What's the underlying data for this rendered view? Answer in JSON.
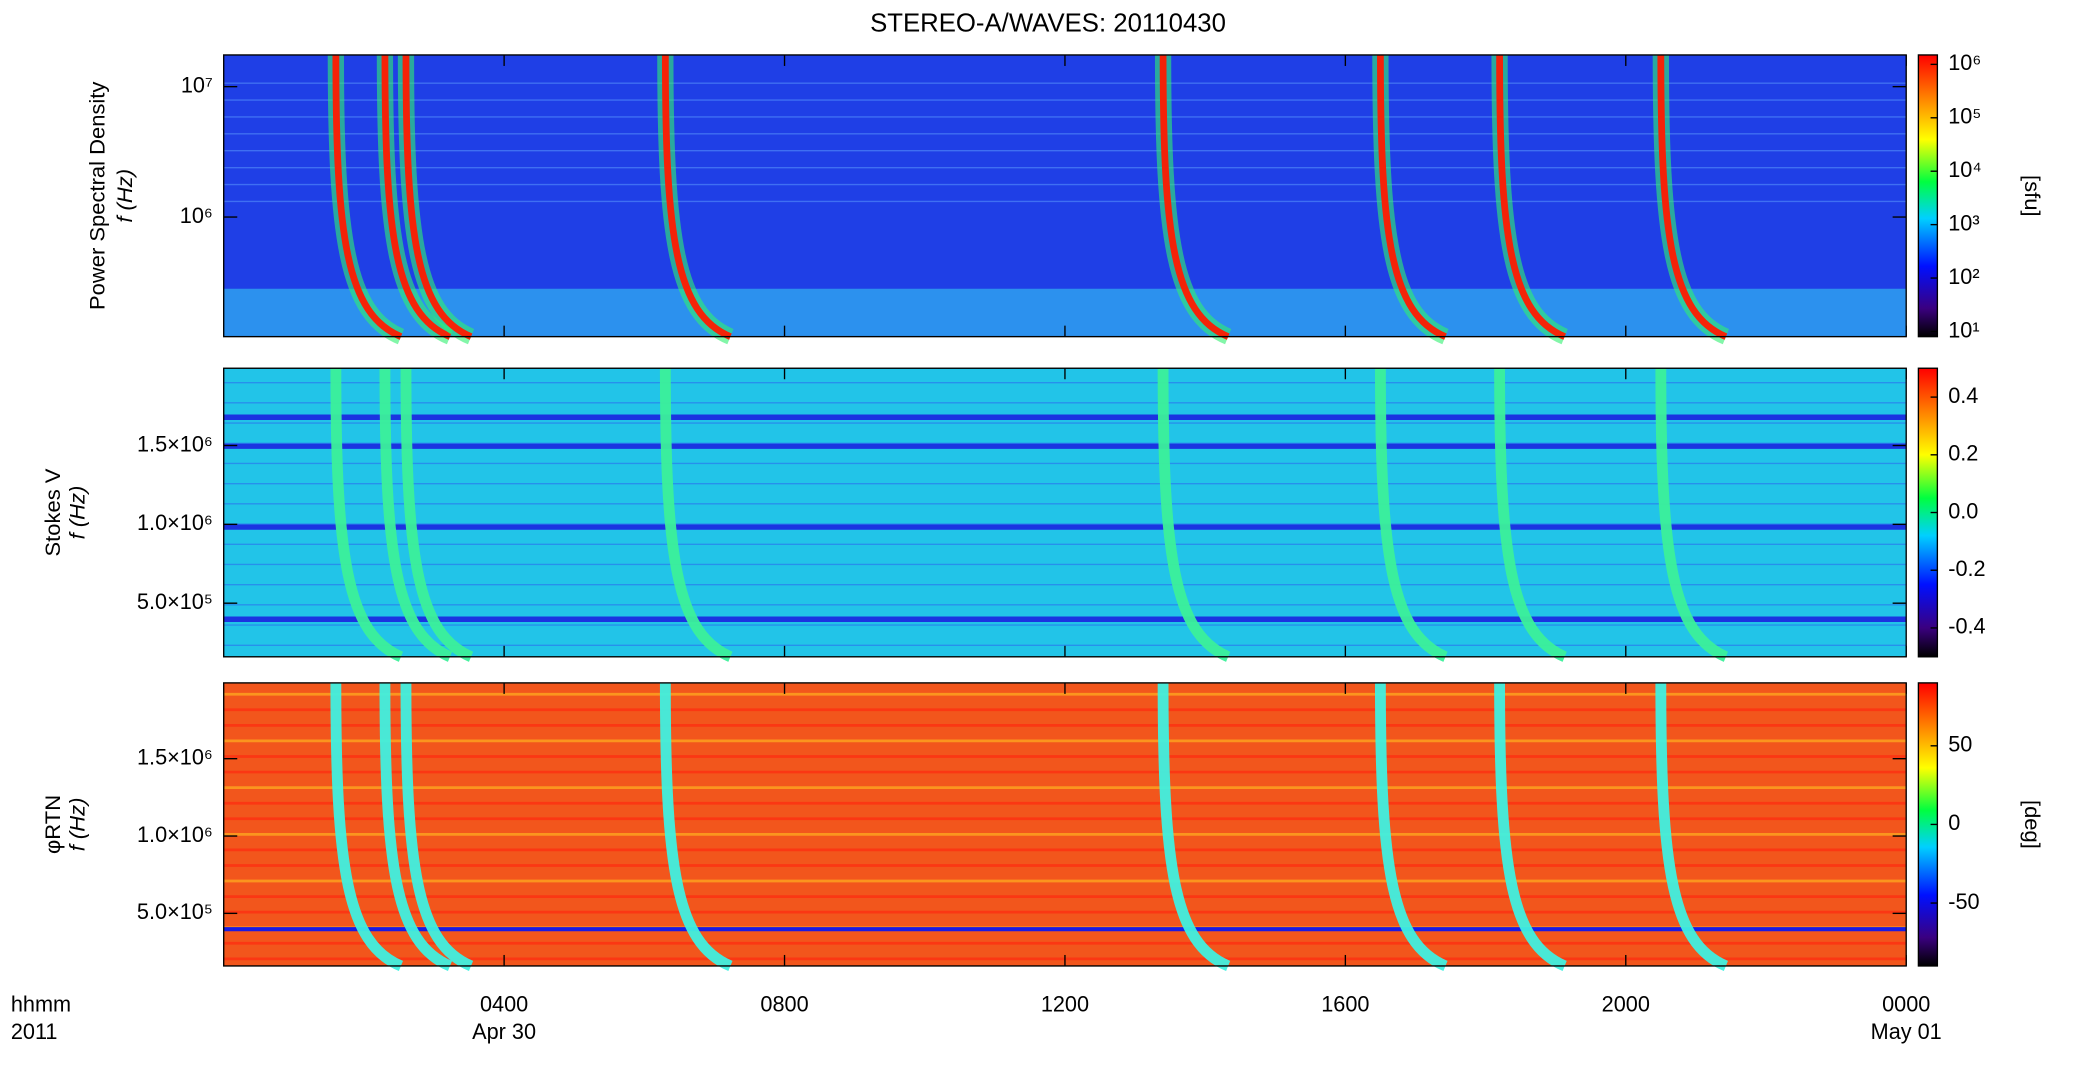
{
  "chart_data": [
    {
      "type": "heatmap",
      "title": "STEREO-A/WAVES: 20110430",
      "ylabel": "Power Spectral Density",
      "ylabel2": "f (Hz)",
      "ylog": true,
      "ylim": [
        121000,
        17500000
      ],
      "yticks": [
        {
          "value": 1000000,
          "label": "10⁶"
        },
        {
          "value": 10000000,
          "label": "10⁷"
        }
      ],
      "colorbar": {
        "log": true,
        "lim": [
          8,
          1500000
        ],
        "label": "[sfu]",
        "ticks": [
          {
            "value": 10,
            "label": "10¹"
          },
          {
            "value": 100,
            "label": "10²"
          },
          {
            "value": 1000,
            "label": "10³"
          },
          {
            "value": 10000,
            "label": "10⁴"
          },
          {
            "value": 100000,
            "label": "10⁵"
          },
          {
            "value": 1000000,
            "label": "10⁶"
          }
        ]
      },
      "background": "#1f3fe6",
      "burst_color": "#ff1a00",
      "bursts": [
        1.6,
        2.3,
        2.6,
        6.3,
        13.4,
        16.5,
        18.2,
        20.5
      ]
    },
    {
      "type": "heatmap",
      "ylabel": "Stokes V",
      "ylabel2": "f (Hz)",
      "ylog": false,
      "ylim": [
        160000,
        1990000
      ],
      "yticks": [
        {
          "value": 500000,
          "label": "5.0×10⁵"
        },
        {
          "value": 1000000,
          "label": "1.0×10⁶"
        },
        {
          "value": 1500000,
          "label": "1.5×10⁶"
        }
      ],
      "colorbar": {
        "log": false,
        "lim": [
          -0.5,
          0.5
        ],
        "ticks": [
          -0.4,
          -0.2,
          {
            "value": 0,
            "label": "0.0"
          },
          0.2,
          0.4
        ]
      },
      "background": "#22c4e8",
      "burst_color": "#3cf09a"
    },
    {
      "type": "heatmap",
      "ylabel": "φRTN",
      "ylabel2": "f (Hz)",
      "ylog": false,
      "ylim": [
        160000,
        1990000
      ],
      "yticks": [
        {
          "value": 500000,
          "label": "5.0×10⁵"
        },
        {
          "value": 1000000,
          "label": "1.0×10⁶"
        },
        {
          "value": 1500000,
          "label": "1.5×10⁶"
        }
      ],
      "colorbar": {
        "log": false,
        "lim": [
          -90,
          90
        ],
        "label": "[deg]",
        "ticks": [
          -50,
          0,
          50
        ]
      },
      "background": "#f2561c",
      "burst_color": "#3ff0e0",
      "xlim": [
        0,
        24
      ],
      "xticks": [
        {
          "value": 4,
          "label": "0400"
        },
        {
          "value": 8,
          "label": "0800"
        },
        {
          "value": 12,
          "label": "1200"
        },
        {
          "value": 16,
          "label": "1600"
        },
        {
          "value": 20,
          "label": "2000"
        },
        {
          "value": 24,
          "label": "0000"
        }
      ],
      "date_labels": [
        {
          "value": 4,
          "label": "Apr 30"
        },
        {
          "value": 24,
          "label": "May 01"
        }
      ],
      "xlabel": "hhmm",
      "year": "2011"
    }
  ]
}
